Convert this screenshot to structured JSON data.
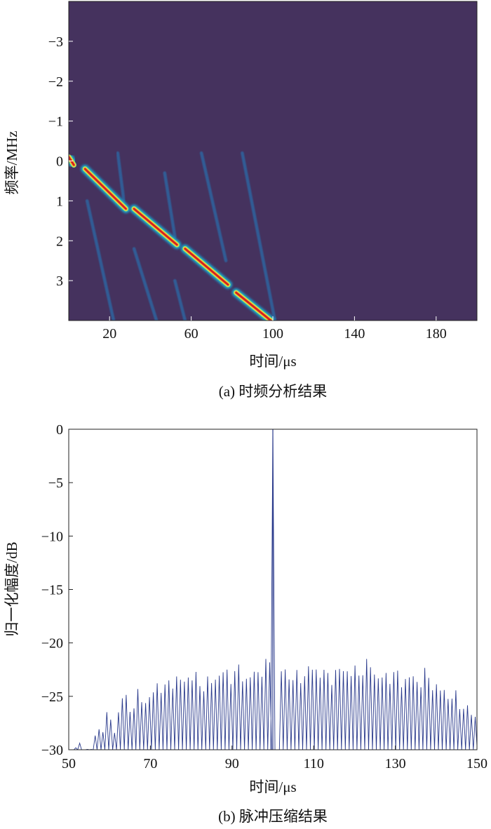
{
  "chart_data": [
    {
      "type": "heatmap",
      "panel_label": "(a) 时频分析结果",
      "xlabel": "时间/μs",
      "ylabel": "频率/MHz",
      "xlim": [
        0,
        200
      ],
      "ylim": [
        -4,
        4
      ],
      "y_inverted": true,
      "xticks": [
        20,
        60,
        100,
        140,
        180
      ],
      "yticks": [
        -3,
        -2,
        -1,
        0,
        1,
        2,
        3
      ],
      "background_color": "#45325e",
      "colormap": [
        "#45325e",
        "#2b6aa8",
        "#1fb7c5",
        "#8fe07a",
        "#f5e33a",
        "#f08c28",
        "#d42020"
      ],
      "series": [
        {
          "role": "main",
          "segments": [
            [
              0,
              -0.1,
              2.5,
              0.1
            ],
            [
              8,
              0.2,
              28,
              1.2
            ],
            [
              32,
              1.2,
              53,
              2.1
            ],
            [
              57,
              2.2,
              78,
              3.1
            ],
            [
              82,
              3.3,
              99,
              4.0
            ]
          ]
        },
        {
          "role": "faint",
          "segments": [
            [
              9,
              1.0,
              22,
              4.0
            ],
            [
              32,
              2.2,
              43,
              4.0
            ],
            [
              52,
              3.0,
              57,
              4.0
            ],
            [
              24,
              -0.2,
              27,
              1.0
            ],
            [
              47,
              0.3,
              52,
              1.9
            ],
            [
              65,
              -0.2,
              77,
              2.5
            ],
            [
              85,
              -0.2,
              101,
              4.0
            ]
          ]
        }
      ]
    },
    {
      "type": "line",
      "panel_label": "(b) 脉冲压缩结果",
      "xlabel": "时间/μs",
      "ylabel": "归一化幅度/dB",
      "xlim": [
        50,
        150
      ],
      "ylim": [
        -30,
        0
      ],
      "xticks": [
        50,
        70,
        90,
        110,
        130,
        150
      ],
      "yticks": [
        0,
        -5,
        -10,
        -15,
        -20,
        -25,
        -30
      ],
      "line_color": "#2a3a8c",
      "series": [
        {
          "peak": {
            "x": 100,
            "y": 0
          },
          "sidelobe_period": 0.95,
          "sidelobe_peaks": [
            [
              51,
              -30
            ],
            [
              55,
              -30
            ],
            [
              57,
              -28
            ],
            [
              59.5,
              -27
            ],
            [
              61,
              -28
            ],
            [
              63,
              -24.6
            ],
            [
              65,
              -26.4
            ],
            [
              67,
              -24.7
            ],
            [
              69,
              -25.8
            ],
            [
              71,
              -23.8
            ],
            [
              73,
              -24.4
            ],
            [
              75,
              -23.4
            ],
            [
              77,
              -23.7
            ],
            [
              79,
              -23.1
            ],
            [
              81,
              -23.5
            ],
            [
              83,
              -24.1
            ],
            [
              85,
              -23.4
            ],
            [
              87,
              -22.8
            ],
            [
              89,
              -23.1
            ],
            [
              91,
              -22.6
            ],
            [
              93,
              -23.4
            ],
            [
              95,
              -23.0
            ],
            [
              97,
              -22.4
            ],
            [
              99,
              -21.8
            ],
            [
              101,
              -22.6
            ],
            [
              103,
              -22.8
            ],
            [
              105,
              -23.5
            ],
            [
              107,
              -23.0
            ],
            [
              109,
              -22.4
            ],
            [
              111,
              -22.7
            ],
            [
              113,
              -23.2
            ],
            [
              115,
              -22.9
            ],
            [
              117,
              -22.4
            ],
            [
              119,
              -22.9
            ],
            [
              121,
              -22.7
            ],
            [
              123,
              -21.8
            ],
            [
              125,
              -23.2
            ],
            [
              127,
              -23.4
            ],
            [
              129,
              -22.8
            ],
            [
              131,
              -23.6
            ],
            [
              133,
              -23.2
            ],
            [
              135,
              -23.7
            ],
            [
              137,
              -23.0
            ],
            [
              139,
              -24.0
            ],
            [
              141,
              -24.6
            ],
            [
              143,
              -24.9
            ],
            [
              145,
              -25.5
            ],
            [
              147,
              -26.2
            ],
            [
              149,
              -27.0
            ]
          ]
        }
      ]
    }
  ]
}
